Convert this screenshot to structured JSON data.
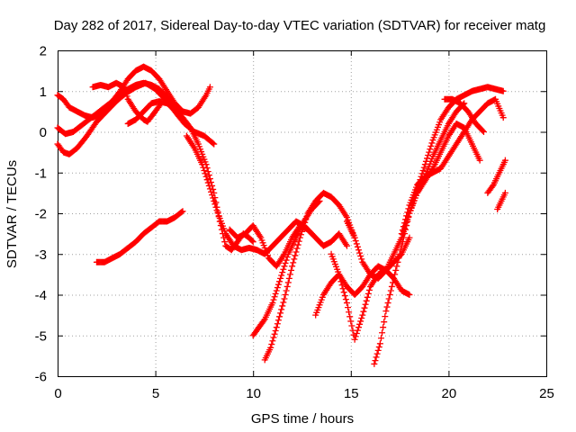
{
  "chart_data": {
    "type": "scatter",
    "title": "Day 282 of 2017, Sidereal Day-to-day VTEC variation (SDTVAR) for receiver matg",
    "xlabel": "GPS time / hours",
    "ylabel": "SDTVAR / TECUs",
    "xlim": [
      0,
      25
    ],
    "ylim": [
      -6,
      2
    ],
    "x_ticks": [
      "0",
      "5",
      "10",
      "15",
      "20",
      "25"
    ],
    "y_ticks": [
      "-6",
      "-5",
      "-4",
      "-3",
      "-2",
      "-1",
      "0",
      "1",
      "2"
    ],
    "grid": true,
    "marker": "+",
    "color": "#ff0000",
    "series": [
      {
        "x": [
          0.0,
          0.3,
          0.6,
          1.0,
          1.4,
          1.8,
          2.0,
          2.4,
          2.8,
          3.2,
          3.6,
          4.0,
          4.4,
          4.8,
          5.2,
          5.6,
          6.0,
          6.4,
          6.8,
          7.2,
          7.6,
          7.8
        ],
        "y": [
          0.9,
          0.8,
          0.6,
          0.5,
          0.4,
          0.35,
          0.4,
          0.55,
          0.75,
          1.0,
          1.3,
          1.5,
          1.6,
          1.5,
          1.3,
          1.0,
          0.7,
          0.5,
          0.45,
          0.6,
          0.9,
          1.1
        ]
      },
      {
        "x": [
          0.0,
          0.3,
          0.6,
          1.0,
          1.5,
          2.0,
          2.5,
          3.0,
          3.5,
          4.0,
          4.5,
          5.0,
          5.5,
          6.0,
          6.5,
          7.0,
          7.5,
          8.0
        ],
        "y": [
          -0.3,
          -0.5,
          -0.55,
          -0.4,
          -0.1,
          0.25,
          0.5,
          0.75,
          0.95,
          1.1,
          1.2,
          1.05,
          0.8,
          0.5,
          0.2,
          0.0,
          -0.1,
          -0.3
        ]
      },
      {
        "x": [
          0.0,
          0.4,
          0.8,
          1.2,
          1.6,
          2.0,
          2.4,
          2.8,
          3.2,
          3.6,
          4.0,
          4.4,
          4.8,
          5.2,
          5.6,
          6.0
        ],
        "y": [
          0.1,
          -0.05,
          0.0,
          0.15,
          0.3,
          0.45,
          0.6,
          0.75,
          0.9,
          1.05,
          1.15,
          1.2,
          1.15,
          1.05,
          0.85,
          0.65
        ]
      },
      {
        "x": [
          1.8,
          2.2,
          2.6,
          3.0,
          3.4,
          3.6,
          4.0,
          4.4,
          4.6,
          5.0,
          5.3
        ],
        "y": [
          1.1,
          1.15,
          1.1,
          1.2,
          1.1,
          0.8,
          0.5,
          0.3,
          0.25,
          0.5,
          0.7
        ]
      },
      {
        "x": [
          3.6,
          4.0,
          4.4,
          4.8,
          5.2,
          5.6,
          6.0,
          6.4,
          6.8,
          7.2,
          7.6,
          8.0,
          8.3,
          8.6,
          8.9,
          9.2,
          9.5,
          9.8,
          10.0
        ],
        "y": [
          0.2,
          0.3,
          0.5,
          0.7,
          0.75,
          0.7,
          0.55,
          0.35,
          0.1,
          -0.3,
          -0.8,
          -1.5,
          -2.2,
          -2.8,
          -2.9,
          -2.7,
          -2.5,
          -2.6,
          -2.7
        ]
      },
      {
        "x": [
          2.0,
          2.4,
          2.8,
          3.2,
          3.6,
          4.0,
          4.4,
          4.8,
          5.2,
          5.6,
          6.0,
          6.4
        ],
        "y": [
          -3.2,
          -3.2,
          -3.1,
          -3.0,
          -2.85,
          -2.7,
          -2.5,
          -2.35,
          -2.2,
          -2.2,
          -2.1,
          -1.95
        ]
      },
      {
        "x": [
          6.6,
          7.0,
          7.4,
          7.8,
          8.2,
          8.6,
          9.0,
          9.4,
          9.8,
          10.2,
          10.6,
          11.0,
          11.4,
          11.8,
          12.2,
          12.6,
          13.0
        ],
        "y": [
          -0.1,
          -0.4,
          -0.8,
          -1.4,
          -2.0,
          -2.5,
          -2.8,
          -2.9,
          -2.85,
          -2.9,
          -3.0,
          -2.8,
          -2.6,
          -2.4,
          -2.2,
          -2.3,
          -2.5
        ]
      },
      {
        "x": [
          10.0,
          10.3,
          10.6,
          11.0,
          11.4,
          11.8,
          12.2,
          12.6,
          13.0,
          13.4
        ],
        "y": [
          -5.0,
          -4.8,
          -4.6,
          -4.2,
          -3.6,
          -3.0,
          -2.6,
          -2.2,
          -1.9,
          -1.7
        ]
      },
      {
        "x": [
          10.6,
          10.9,
          11.2,
          11.6,
          12.0,
          12.4,
          12.8,
          13.2,
          13.6,
          14.0,
          14.4,
          14.8,
          15.2
        ],
        "y": [
          -5.6,
          -5.3,
          -4.8,
          -4.1,
          -3.3,
          -2.6,
          -2.0,
          -1.7,
          -1.5,
          -1.6,
          -1.8,
          -2.1,
          -2.6
        ]
      },
      {
        "x": [
          8.8,
          9.2,
          9.6,
          10.0,
          10.4,
          10.8,
          11.2,
          11.6,
          12.0,
          12.4,
          12.8,
          13.2,
          13.6,
          14.0,
          14.4,
          14.8
        ],
        "y": [
          -2.4,
          -2.6,
          -2.5,
          -2.3,
          -2.6,
          -3.1,
          -3.3,
          -3.0,
          -2.6,
          -2.3,
          -2.4,
          -2.6,
          -2.8,
          -2.7,
          -2.5,
          -2.8
        ]
      },
      {
        "x": [
          13.2,
          13.6,
          14.0,
          14.4,
          14.8,
          15.2,
          15.6,
          16.0,
          16.4,
          16.8,
          17.2,
          17.6,
          18.0
        ],
        "y": [
          -4.5,
          -4.0,
          -3.7,
          -3.5,
          -3.8,
          -4.0,
          -3.8,
          -3.5,
          -3.3,
          -3.4,
          -3.6,
          -3.9,
          -4.0
        ]
      },
      {
        "x": [
          14.0,
          14.4,
          14.8,
          15.2,
          15.6,
          16.0,
          16.4,
          16.8,
          17.2,
          17.6,
          18.0
        ],
        "y": [
          -3.0,
          -3.5,
          -4.2,
          -5.1,
          -4.5,
          -3.8,
          -3.5,
          -3.4,
          -3.2,
          -3.0,
          -2.6
        ]
      },
      {
        "x": [
          14.8,
          15.2,
          15.6,
          16.0,
          16.4,
          16.8,
          17.2,
          17.6,
          18.0,
          18.4,
          18.8,
          19.2,
          19.6,
          20.0,
          20.4,
          20.8,
          21.2,
          21.6,
          22.0,
          22.4,
          22.8
        ],
        "y": [
          -2.2,
          -2.6,
          -3.2,
          -3.5,
          -3.6,
          -3.4,
          -3.0,
          -2.6,
          -2.0,
          -1.4,
          -0.8,
          -0.2,
          0.3,
          0.6,
          0.8,
          0.9,
          1.0,
          1.05,
          1.1,
          1.05,
          1.0
        ]
      },
      {
        "x": [
          16.2,
          16.5,
          16.8,
          17.1,
          17.4,
          17.7,
          18.0,
          18.4,
          18.8,
          19.2,
          19.6,
          20.0,
          20.4,
          20.8
        ],
        "y": [
          -5.7,
          -5.2,
          -4.4,
          -3.8,
          -3.2,
          -2.6,
          -2.0,
          -1.5,
          -1.1,
          -0.6,
          -0.2,
          0.2,
          0.5,
          0.7
        ]
      },
      {
        "x": [
          17.6,
          18.0,
          18.4,
          18.8,
          19.2,
          19.6,
          20.0,
          20.4,
          20.8,
          21.2,
          21.6,
          22.0,
          22.4,
          22.8
        ],
        "y": [
          -2.5,
          -1.8,
          -1.3,
          -1.1,
          -1.0,
          -0.9,
          -0.6,
          -0.3,
          0.0,
          0.3,
          0.5,
          0.7,
          0.8,
          0.35
        ]
      },
      {
        "x": [
          18.4,
          18.8,
          19.2,
          19.6,
          20.0,
          20.4,
          20.8,
          21.2,
          21.6
        ],
        "y": [
          -1.5,
          -1.2,
          -0.9,
          -0.5,
          -0.1,
          0.2,
          0.1,
          -0.3,
          -0.7
        ]
      },
      {
        "x": [
          19.8,
          20.2,
          20.6,
          21.0,
          21.4,
          21.8
        ],
        "y": [
          0.8,
          0.8,
          0.7,
          0.5,
          0.2,
          0.0
        ]
      },
      {
        "x": [
          22.0,
          22.3,
          22.6,
          22.9
        ],
        "y": [
          -1.5,
          -1.3,
          -1.0,
          -0.7
        ]
      },
      {
        "x": [
          22.5,
          22.7,
          22.9
        ],
        "y": [
          -1.9,
          -1.7,
          -1.5
        ]
      }
    ]
  }
}
